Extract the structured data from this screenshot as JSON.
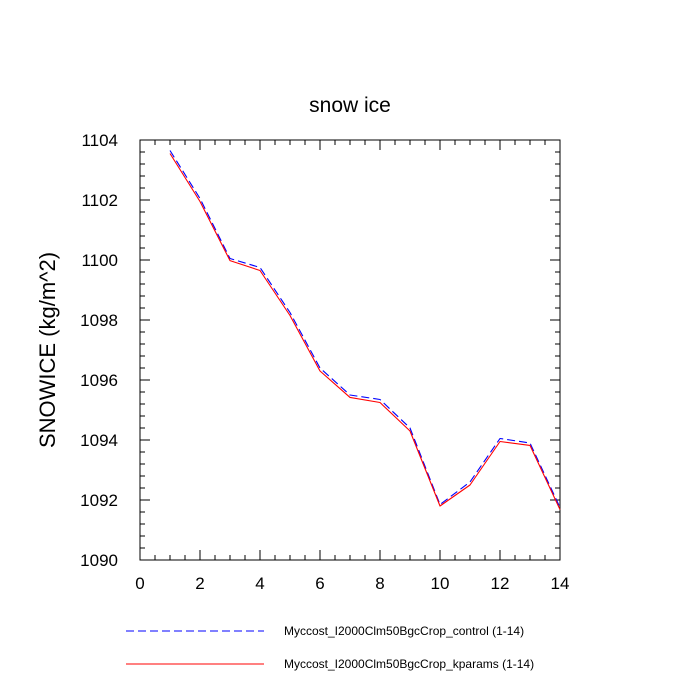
{
  "chart_data": {
    "type": "line",
    "title": "snow ice",
    "xlabel": "",
    "ylabel": "SNOWICE  (kg/m^2)",
    "xlim": [
      0,
      14
    ],
    "ylim": [
      1090,
      1104
    ],
    "xticks": [
      0,
      2,
      4,
      6,
      8,
      10,
      12,
      14
    ],
    "yticks": [
      1090,
      1092,
      1094,
      1096,
      1098,
      1100,
      1102,
      1104
    ],
    "grid": false,
    "legend_position": "bottom",
    "series": [
      {
        "name": "Myccost_I2000Clm50BgcCrop_control (1-14)",
        "color": "#0000ff",
        "style": "dashed",
        "x": [
          1,
          2,
          3,
          4,
          5,
          6,
          7,
          8,
          9,
          10,
          11,
          12,
          13,
          14
        ],
        "y": [
          1103.65,
          1102.05,
          1100.05,
          1099.75,
          1098.25,
          1096.4,
          1095.5,
          1095.35,
          1094.4,
          1091.85,
          1092.6,
          1094.05,
          1093.9,
          1091.75
        ]
      },
      {
        "name": "Myccost_I2000Clm50BgcCrop_kparams (1-14)",
        "color": "#ff0000",
        "style": "solid",
        "x": [
          1,
          2,
          3,
          4,
          5,
          6,
          7,
          8,
          9,
          10,
          11,
          12,
          13,
          14
        ],
        "y": [
          1103.55,
          1101.95,
          1099.98,
          1099.65,
          1098.15,
          1096.3,
          1095.42,
          1095.25,
          1094.3,
          1091.8,
          1092.5,
          1093.95,
          1093.82,
          1091.68
        ]
      }
    ]
  }
}
